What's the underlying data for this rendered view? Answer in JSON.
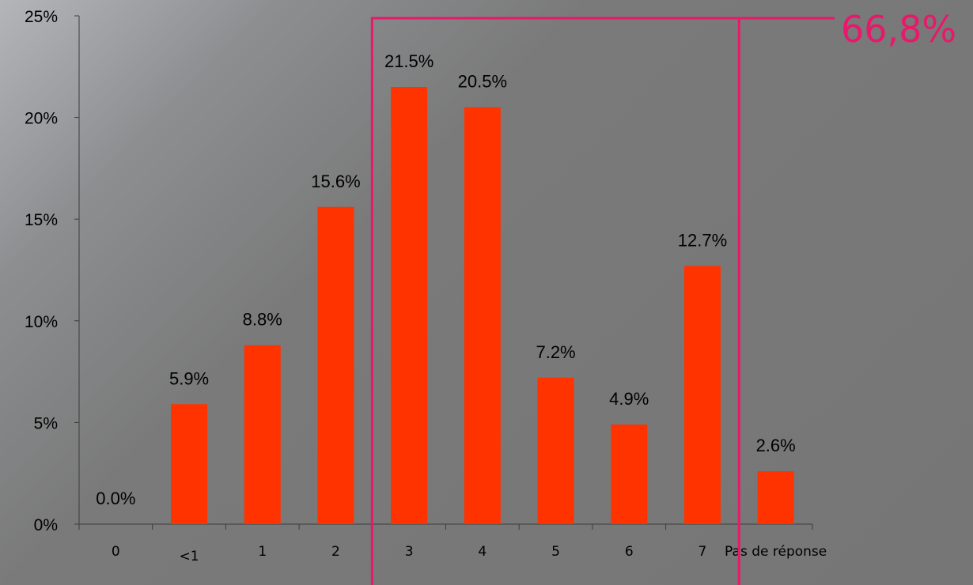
{
  "chart_data": {
    "type": "bar",
    "categories": [
      "0",
      "<1",
      "1",
      "2",
      "3",
      "4",
      "5",
      "6",
      "7",
      "Pas de réponse"
    ],
    "values": [
      0.0,
      5.9,
      8.8,
      15.6,
      21.5,
      20.5,
      7.2,
      4.9,
      12.7,
      2.6
    ],
    "data_labels": [
      "0.0%",
      "5.9%",
      "8.8%",
      "15.6%",
      "21.5%",
      "20.5%",
      "7.2%",
      "4.9%",
      "12.7%",
      "2.6%"
    ],
    "ylim": [
      0,
      25
    ],
    "ytick_labels": [
      "0%",
      "5%",
      "10%",
      "15%",
      "20%",
      "25%"
    ],
    "bar_color": "#ff3300",
    "grid": false,
    "title": "",
    "xlabel": "",
    "ylabel": "",
    "highlight": {
      "label": "66,8%",
      "categories": [
        "3",
        "4",
        "5",
        "6",
        "7"
      ],
      "color": "#e8186a"
    }
  }
}
